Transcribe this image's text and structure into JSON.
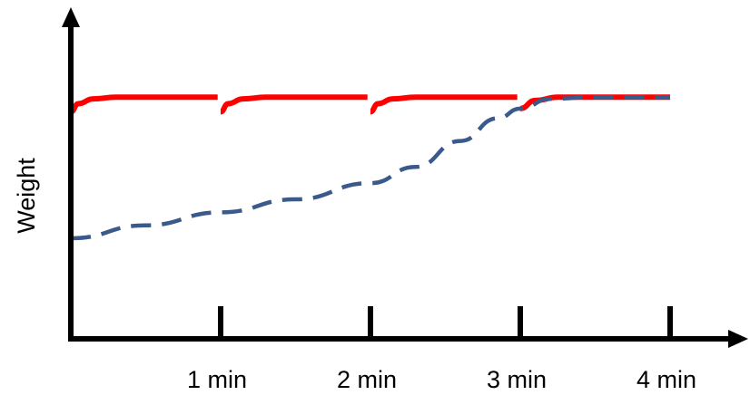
{
  "chart_data": {
    "type": "line",
    "title": "",
    "xlabel": "",
    "ylabel": "Weight",
    "x_tick_labels": [
      "1 min",
      "2 min",
      "3 min",
      "4 min"
    ],
    "x_ticks": [
      1,
      2,
      3,
      4
    ],
    "xlim": [
      0,
      4
    ],
    "ylim": [
      0,
      1
    ],
    "grid": false,
    "legend": "none",
    "series": [
      {
        "style": "solid",
        "color": "#ff0000",
        "segments": [
          {
            "x": [
              0,
              0.05,
              0.15,
              0.3,
              0.6,
              0.98
            ],
            "y": [
              0.7,
              0.725,
              0.74,
              0.745,
              0.745,
              0.745
            ]
          },
          {
            "x": [
              1.0,
              1.05,
              1.15,
              1.3,
              1.6,
              1.98
            ],
            "y": [
              0.7,
              0.725,
              0.74,
              0.745,
              0.745,
              0.745
            ]
          },
          {
            "x": [
              2.0,
              2.05,
              2.15,
              2.3,
              2.6,
              2.98
            ],
            "y": [
              0.7,
              0.725,
              0.74,
              0.745,
              0.745,
              0.745
            ]
          },
          {
            "x": [
              3.0,
              3.1,
              3.25,
              3.5,
              4.0
            ],
            "y": [
              0.71,
              0.735,
              0.745,
              0.745,
              0.745
            ]
          }
        ]
      },
      {
        "style": "dashed",
        "color": "#3a5a8c",
        "segments": [
          {
            "x": [
              0,
              0.5,
              1.0,
              1.5,
              2.0,
              2.3,
              2.6,
              2.85,
              3.0,
              3.2,
              3.5,
              4.0
            ],
            "y": [
              0.31,
              0.35,
              0.39,
              0.43,
              0.48,
              0.53,
              0.61,
              0.68,
              0.71,
              0.74,
              0.745,
              0.745
            ]
          }
        ]
      }
    ]
  }
}
